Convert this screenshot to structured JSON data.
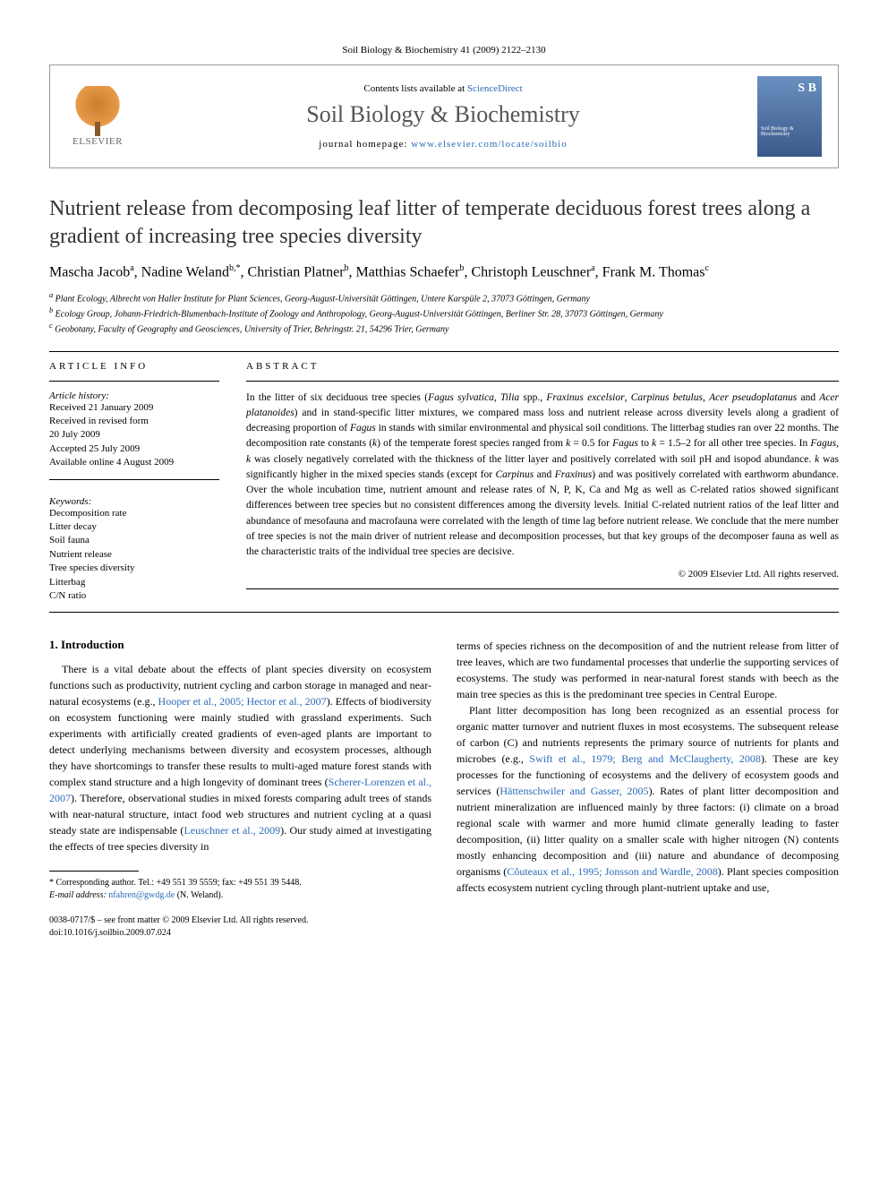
{
  "citation": "Soil Biology & Biochemistry 41 (2009) 2122–2130",
  "header": {
    "elsevier": "ELSEVIER",
    "contents_prefix": "Contents lists available at ",
    "contents_link": "ScienceDirect",
    "journal_title": "Soil Biology & Biochemistry",
    "homepage_prefix": "journal homepage: ",
    "homepage_url": "www.elsevier.com/locate/soilbio",
    "cover_label": "Soil Biology & Biochemistry"
  },
  "article": {
    "title": "Nutrient release from decomposing leaf litter of temperate deciduous forest trees along a gradient of increasing tree species diversity",
    "authors_html": "Mascha Jacob<sup>a</sup>, Nadine Weland<sup>b,*</sup>, Christian Platner<sup>b</sup>, Matthias Schaefer<sup>b</sup>, Christoph Leuschner<sup>a</sup>, Frank M. Thomas<sup>c</sup>",
    "affiliations": {
      "a": "Plant Ecology, Albrecht von Haller Institute for Plant Sciences, Georg-August-Universität Göttingen, Untere Karspüle 2, 37073 Göttingen, Germany",
      "b": "Ecology Group, Johann-Friedrich-Blumenbach-Institute of Zoology and Anthropology, Georg-August-Universität Göttingen, Berliner Str. 28, 37073 Göttingen, Germany",
      "c": "Geobotany, Faculty of Geography and Geosciences, University of Trier, Behringstr. 21, 54296 Trier, Germany"
    }
  },
  "info": {
    "label": "ARTICLE INFO",
    "history_label": "Article history:",
    "history": [
      "Received 21 January 2009",
      "Received in revised form",
      "20 July 2009",
      "Accepted 25 July 2009",
      "Available online 4 August 2009"
    ],
    "keywords_label": "Keywords:",
    "keywords": [
      "Decomposition rate",
      "Litter decay",
      "Soil fauna",
      "Nutrient release",
      "Tree species diversity",
      "Litterbag",
      "C/N ratio"
    ]
  },
  "abstract": {
    "label": "ABSTRACT",
    "text": "In the litter of six deciduous tree species (<em>Fagus sylvatica</em>, <em>Tilia</em> spp., <em>Fraxinus excelsior</em>, <em>Carpinus betulus</em>, <em>Acer pseudoplatanus</em> and <em>Acer platanoides</em>) and in stand-specific litter mixtures, we compared mass loss and nutrient release across diversity levels along a gradient of decreasing proportion of <em>Fagus</em> in stands with similar environmental and physical soil conditions. The litterbag studies ran over 22 months. The decomposition rate constants (<em>k</em>) of the temperate forest species ranged from <em>k</em> = 0.5 for <em>Fagus</em> to <em>k</em> = 1.5–2 for all other tree species. In <em>Fagus</em>, <em>k</em> was closely negatively correlated with the thickness of the litter layer and positively correlated with soil pH and isopod abundance. <em>k</em> was significantly higher in the mixed species stands (except for <em>Carpinus</em> and <em>Fraxinus</em>) and was positively correlated with earthworm abundance. Over the whole incubation time, nutrient amount and release rates of N, P, K, Ca and Mg as well as C-related ratios showed significant differences between tree species but no consistent differences among the diversity levels. Initial C-related nutrient ratios of the leaf litter and abundance of mesofauna and macrofauna were correlated with the length of time lag before nutrient release. We conclude that the mere number of tree species is not the main driver of nutrient release and decomposition processes, but that key groups of the decomposer fauna as well as the characteristic traits of the individual tree species are decisive.",
    "copyright": "© 2009 Elsevier Ltd. All rights reserved."
  },
  "body": {
    "intro_heading": "1. Introduction",
    "col1_p1": "There is a vital debate about the effects of plant species diversity on ecosystem functions such as productivity, nutrient cycling and carbon storage in managed and near-natural ecosystems (e.g., <span class='link'>Hooper et al., 2005; Hector et al., 2007</span>). Effects of biodiversity on ecosystem functioning were mainly studied with grassland experiments. Such experiments with artificially created gradients of even-aged plants are important to detect underlying mechanisms between diversity and ecosystem processes, although they have shortcomings to transfer these results to multi-aged mature forest stands with complex stand structure and a high longevity of dominant trees (<span class='link'>Scherer-Lorenzen et al., 2007</span>). Therefore, observational studies in mixed forests comparing adult trees of stands with near-natural structure, intact food web structures and nutrient cycling at a quasi steady state are indispensable (<span class='link'>Leuschner et al., 2009</span>). Our study aimed at investigating the effects of tree species diversity in",
    "col2_p1": "terms of species richness on the decomposition of and the nutrient release from litter of tree leaves, which are two fundamental processes that underlie the supporting services of ecosystems. The study was performed in near-natural forest stands with beech as the main tree species as this is the predominant tree species in Central Europe.",
    "col2_p2": "Plant litter decomposition has long been recognized as an essential process for organic matter turnover and nutrient fluxes in most ecosystems. The subsequent release of carbon (C) and nutrients represents the primary source of nutrients for plants and microbes (e.g., <span class='link'>Swift et al., 1979; Berg and McClaugherty, 2008</span>). These are key processes for the functioning of ecosystems and the delivery of ecosystem goods and services (<span class='link'>Hättenschwiler and Gasser, 2005</span>). Rates of plant litter decomposition and nutrient mineralization are influenced mainly by three factors: (i) climate on a broad regional scale with warmer and more humid climate generally leading to faster decomposition, (ii) litter quality on a smaller scale with higher nitrogen (N) contents mostly enhancing decomposition and (iii) nature and abundance of decomposing organisms (<span class='link'>Côuteaux et al., 1995; Jonsson and Wardle, 2008</span>). Plant species composition affects ecosystem nutrient cycling through plant-nutrient uptake and use,"
  },
  "footnote": {
    "corresponding": "* Corresponding author. Tel.: +49 551 39 5559; fax: +49 551 39 5448.",
    "email_label": "E-mail address:",
    "email": "nfahren@gwdg.de",
    "email_suffix": "(N. Weland)."
  },
  "footer": {
    "issn": "0038-0717/$ – see front matter © 2009 Elsevier Ltd. All rights reserved.",
    "doi": "doi:10.1016/j.soilbio.2009.07.024"
  },
  "colors": {
    "link": "#2a6bb8",
    "text": "#000000",
    "title_gray": "#555555",
    "border": "#999999"
  }
}
